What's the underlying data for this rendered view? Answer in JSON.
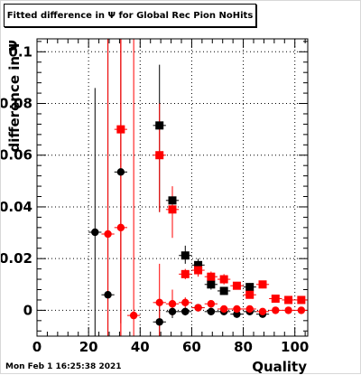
{
  "title": "Fitted difference in Ψ  for Global Rec Pion NoHits",
  "datestamp": "Mon Feb  1 16:25:38 2021",
  "chart_data": {
    "type": "scatter",
    "xlabel": "Quality",
    "ylabel": "difference in Ψ",
    "xlim": [
      0,
      105
    ],
    "ylim": [
      -0.01,
      0.105
    ],
    "grid": true,
    "x_ticks": [
      "0",
      "20",
      "40",
      "60",
      "80",
      "100"
    ],
    "y_ticks": [
      "0",
      "0.02",
      "0.04",
      "0.06",
      "0.08",
      "0.1"
    ],
    "colors": {
      "black": "#000000",
      "red": "#ff0000"
    },
    "series": [
      {
        "marker": "square",
        "color": "#000000",
        "points": [
          {
            "x": 47.5,
            "y": 0.0715,
            "ylo": 0.038,
            "yhi": 0.095
          },
          {
            "x": 52.5,
            "y": 0.0425,
            "ylo": 0.037,
            "yhi": 0.047
          },
          {
            "x": 57.5,
            "y": 0.0212,
            "ylo": 0.018,
            "yhi": 0.025
          },
          {
            "x": 62.5,
            "y": 0.0175,
            "ylo": 0.015,
            "yhi": 0.02
          },
          {
            "x": 67.5,
            "y": 0.01,
            "ylo": 0.008,
            "yhi": 0.012
          },
          {
            "x": 72.5,
            "y": 0.0075,
            "ylo": 0.006,
            "yhi": 0.009
          },
          {
            "x": 82.5,
            "y": 0.009,
            "ylo": 0.0075,
            "yhi": 0.0105
          }
        ]
      },
      {
        "marker": "circle",
        "color": "#000000",
        "points": [
          {
            "x": 22.5,
            "y": 0.0302,
            "ylo": -0.01,
            "yhi": 0.086
          },
          {
            "x": 27.5,
            "y": 0.006,
            "ylo": -0.01,
            "yhi": 0.105
          },
          {
            "x": 32.5,
            "y": 0.0535,
            "ylo": -0.005,
            "yhi": 0.105
          },
          {
            "x": 47.5,
            "y": -0.0045,
            "ylo": -0.01,
            "yhi": 0.002
          },
          {
            "x": 52.5,
            "y": -0.0005,
            "ylo": -0.003,
            "yhi": 0.002
          },
          {
            "x": 57.5,
            "y": -0.0005,
            "ylo": -0.002,
            "yhi": 0.001
          },
          {
            "x": 62.5,
            "y": 0.001,
            "ylo": 0.0,
            "yhi": 0.002
          },
          {
            "x": 67.5,
            "y": -0.0005,
            "ylo": -0.0015,
            "yhi": 0.0005
          },
          {
            "x": 72.5,
            "y": -0.0005,
            "ylo": -0.0015,
            "yhi": 0.0005
          },
          {
            "x": 77.5,
            "y": -0.0015,
            "ylo": -0.0025,
            "yhi": -0.0005
          },
          {
            "x": 82.5,
            "y": -0.0005,
            "ylo": -0.0015,
            "yhi": 0.0005
          },
          {
            "x": 87.5,
            "y": -0.0015,
            "ylo": -0.0025,
            "yhi": -0.0005
          }
        ]
      },
      {
        "marker": "square",
        "color": "#ff0000",
        "points": [
          {
            "x": 32.5,
            "y": 0.07,
            "ylo": -0.01,
            "yhi": 0.105
          },
          {
            "x": 47.5,
            "y": 0.06,
            "ylo": 0.038,
            "yhi": 0.08
          },
          {
            "x": 52.5,
            "y": 0.039,
            "ylo": 0.028,
            "yhi": 0.048
          },
          {
            "x": 57.5,
            "y": 0.014,
            "ylo": 0.012,
            "yhi": 0.016
          },
          {
            "x": 62.5,
            "y": 0.0155,
            "ylo": 0.013,
            "yhi": 0.018
          },
          {
            "x": 67.5,
            "y": 0.013,
            "ylo": 0.011,
            "yhi": 0.015
          },
          {
            "x": 72.5,
            "y": 0.012,
            "ylo": 0.01,
            "yhi": 0.014
          },
          {
            "x": 77.5,
            "y": 0.0095,
            "ylo": 0.008,
            "yhi": 0.011
          },
          {
            "x": 82.5,
            "y": 0.006,
            "ylo": 0.0045,
            "yhi": 0.0075
          },
          {
            "x": 87.5,
            "y": 0.01,
            "ylo": 0.0085,
            "yhi": 0.0115
          },
          {
            "x": 92.5,
            "y": 0.0045,
            "ylo": 0.0035,
            "yhi": 0.0055
          },
          {
            "x": 97.5,
            "y": 0.004,
            "ylo": 0.003,
            "yhi": 0.005
          },
          {
            "x": 102.5,
            "y": 0.004,
            "ylo": 0.003,
            "yhi": 0.005
          }
        ]
      },
      {
        "marker": "circle",
        "color": "#ff0000",
        "points": [
          {
            "x": 27.5,
            "y": 0.0295,
            "ylo": -0.01,
            "yhi": 0.105
          },
          {
            "x": 32.5,
            "y": 0.032,
            "ylo": -0.01,
            "yhi": 0.105
          },
          {
            "x": 37.5,
            "y": -0.002,
            "ylo": -0.01,
            "yhi": 0.105
          },
          {
            "x": 47.5,
            "y": 0.003,
            "ylo": -0.01,
            "yhi": 0.018
          },
          {
            "x": 52.5,
            "y": 0.0025,
            "ylo": -0.002,
            "yhi": 0.008
          },
          {
            "x": 57.5,
            "y": 0.003,
            "ylo": 0.001,
            "yhi": 0.005
          },
          {
            "x": 62.5,
            "y": 0.001,
            "ylo": 0.0,
            "yhi": 0.002
          },
          {
            "x": 67.5,
            "y": 0.0025,
            "ylo": 0.0015,
            "yhi": 0.0035
          },
          {
            "x": 72.5,
            "y": 0.0005,
            "ylo": -0.0005,
            "yhi": 0.0015
          },
          {
            "x": 77.5,
            "y": 0.0005,
            "ylo": -0.0005,
            "yhi": 0.0015
          },
          {
            "x": 82.5,
            "y": 0.0005,
            "ylo": -0.0005,
            "yhi": 0.0015
          },
          {
            "x": 87.5,
            "y": -0.0005,
            "ylo": -0.0015,
            "yhi": 0.0005
          },
          {
            "x": 92.5,
            "y": 0.0,
            "ylo": -0.001,
            "yhi": 0.001
          },
          {
            "x": 97.5,
            "y": 0.0,
            "ylo": -0.001,
            "yhi": 0.001
          },
          {
            "x": 102.5,
            "y": 0.0,
            "ylo": -0.001,
            "yhi": 0.001
          }
        ]
      }
    ]
  }
}
